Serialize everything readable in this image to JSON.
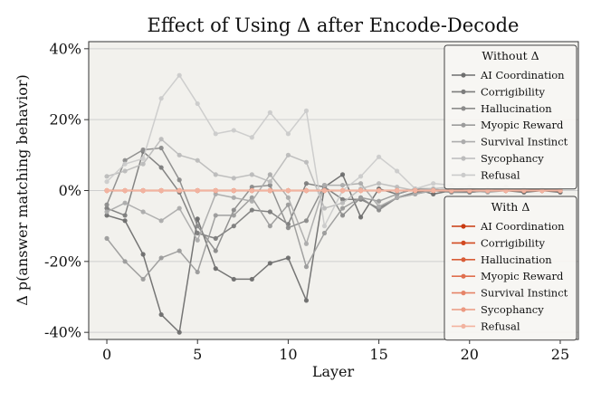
{
  "chart_data": {
    "type": "line",
    "title": "Effect of Using Δ after Encode-Decode",
    "xlabel": "Layer",
    "ylabel": "Δ p(answer matching behavior)",
    "xlim": [
      -1,
      26
    ],
    "ylim": [
      -0.42,
      0.42
    ],
    "xticks": [
      0,
      5,
      10,
      15,
      20,
      25
    ],
    "yticks": [
      {
        "value": 0.4,
        "label": "40%"
      },
      {
        "value": 0.2,
        "label": "20%"
      },
      {
        "value": 0.0,
        "label": "0%"
      },
      {
        "value": -0.2,
        "label": "-20%"
      },
      {
        "value": -0.4,
        "label": "-40%"
      }
    ],
    "x": [
      0,
      1,
      2,
      3,
      4,
      5,
      6,
      7,
      8,
      9,
      10,
      11,
      12,
      13,
      14,
      15,
      16,
      17,
      18,
      19,
      20,
      21,
      22,
      23,
      24,
      25
    ],
    "legends": [
      {
        "title": "Without Δ",
        "group": "without"
      },
      {
        "title": "With Δ",
        "group": "with"
      }
    ],
    "series_without": [
      {
        "name": "AI Coordination",
        "color": "#6f6f6f",
        "values": [
          -0.07,
          -0.085,
          -0.18,
          -0.35,
          -0.4,
          -0.08,
          -0.22,
          -0.25,
          -0.25,
          -0.205,
          -0.19,
          -0.31,
          0.01,
          0.045,
          -0.075,
          0.005,
          -0.01,
          0.005,
          -0.01,
          0.0,
          -0.005,
          0.0,
          0.0,
          -0.005,
          0.0,
          -0.005
        ]
      },
      {
        "name": "Corrigibility",
        "color": "#7d7d7d",
        "values": [
          -0.05,
          -0.07,
          0.11,
          0.065,
          -0.005,
          -0.12,
          -0.135,
          -0.1,
          -0.055,
          -0.06,
          -0.095,
          0.02,
          0.01,
          -0.025,
          -0.025,
          -0.05,
          -0.02,
          -0.005,
          0.0,
          0.0,
          0.005,
          0.0,
          0.0,
          0.0,
          0.005,
          0.0
        ]
      },
      {
        "name": "Hallucination",
        "color": "#8c8c8c",
        "values": [
          -0.04,
          0.085,
          0.115,
          0.12,
          0.03,
          -0.1,
          -0.17,
          -0.055,
          0.01,
          0.015,
          -0.105,
          -0.085,
          0.015,
          -0.07,
          -0.02,
          -0.055,
          -0.02,
          -0.01,
          0.0,
          -0.005,
          -0.005,
          0.0,
          0.0,
          0.0,
          0.0,
          0.0
        ]
      },
      {
        "name": "Myopic Reward",
        "color": "#9c9c9c",
        "values": [
          -0.135,
          -0.2,
          -0.25,
          -0.19,
          -0.17,
          -0.23,
          -0.07,
          -0.07,
          -0.02,
          -0.1,
          -0.04,
          -0.215,
          -0.12,
          -0.05,
          -0.02,
          -0.03,
          -0.01,
          0.005,
          0.005,
          -0.005,
          0.0,
          0.0,
          0.0,
          0.0,
          0.0,
          0.0
        ]
      },
      {
        "name": "Survival Instinct",
        "color": "#acacac",
        "values": [
          -0.06,
          -0.035,
          -0.06,
          -0.085,
          -0.05,
          -0.14,
          -0.01,
          -0.02,
          -0.03,
          0.045,
          -0.02,
          -0.15,
          0.015,
          0.015,
          0.02,
          -0.045,
          -0.02,
          -0.01,
          0.0,
          0.005,
          0.0,
          -0.005,
          0.0,
          0.0,
          0.0,
          0.0
        ]
      },
      {
        "name": "Sycophancy",
        "color": "#bcbcbc",
        "values": [
          0.04,
          0.055,
          0.075,
          0.145,
          0.1,
          0.085,
          0.045,
          0.035,
          0.045,
          0.025,
          0.1,
          0.08,
          -0.05,
          -0.035,
          0.005,
          0.02,
          0.01,
          0.0,
          0.005,
          0.01,
          0.01,
          0.0,
          0.005,
          0.005,
          0.005,
          0.005
        ]
      },
      {
        "name": "Refusal",
        "color": "#cbcbcb",
        "values": [
          0.025,
          0.075,
          0.09,
          0.26,
          0.325,
          0.245,
          0.16,
          0.17,
          0.15,
          0.22,
          0.16,
          0.225,
          -0.1,
          0.0,
          0.04,
          0.095,
          0.055,
          0.005,
          0.02,
          0.015,
          0.0,
          0.005,
          0.01,
          0.0,
          0.0,
          0.005
        ]
      }
    ],
    "series_with": [
      {
        "name": "AI Coordination",
        "color": "#c83a11",
        "values": [
          0,
          0,
          0,
          0,
          0,
          0,
          0,
          0,
          0,
          0,
          0,
          0,
          0,
          0,
          0,
          0,
          0,
          0,
          0,
          0,
          0,
          0,
          0,
          0,
          0,
          0
        ]
      },
      {
        "name": "Corrigibility",
        "color": "#d24a22",
        "values": [
          0,
          0,
          0,
          0,
          0,
          0,
          0,
          0,
          0,
          0,
          0,
          0,
          0,
          0,
          0,
          0,
          0,
          0,
          0,
          0,
          0,
          0,
          0,
          0,
          0,
          0
        ]
      },
      {
        "name": "Hallucination",
        "color": "#d95d38",
        "values": [
          0,
          0,
          0,
          0,
          0,
          0,
          0,
          0,
          0,
          0,
          0,
          0,
          0,
          0,
          0,
          0,
          0,
          0,
          0,
          0,
          0,
          0,
          0,
          0,
          0,
          0
        ]
      },
      {
        "name": "Myopic Reward",
        "color": "#e06f4f",
        "values": [
          0,
          0,
          0,
          0,
          0,
          0,
          0,
          0,
          0,
          0,
          0,
          0,
          0,
          0,
          0,
          0,
          0,
          0,
          0,
          0,
          0,
          0,
          0,
          0,
          0,
          0
        ]
      },
      {
        "name": "Survival Instinct",
        "color": "#e68468",
        "values": [
          0,
          0,
          0,
          0,
          0,
          0,
          0,
          0,
          0,
          0,
          0,
          0,
          0,
          0,
          0,
          0,
          0,
          0,
          0,
          0,
          0,
          0,
          0,
          0,
          0,
          0
        ]
      },
      {
        "name": "Sycophancy",
        "color": "#ec9a82",
        "values": [
          0,
          0,
          0,
          0,
          0,
          0,
          0,
          0,
          0,
          0,
          0,
          0,
          0,
          0,
          0,
          0,
          0,
          0,
          0,
          0,
          0,
          0,
          0,
          0,
          0,
          0
        ]
      },
      {
        "name": "Refusal",
        "color": "#f2b3a0",
        "values": [
          0,
          0,
          0,
          0,
          0,
          0,
          0,
          0,
          0,
          0,
          0,
          0,
          0,
          0,
          0,
          0,
          0,
          0,
          0,
          0,
          0,
          0,
          0,
          0,
          0,
          0
        ]
      }
    ],
    "colors": {
      "plot_bg": "#f2f1ed",
      "grid": "#cfcfcf",
      "legend_bg": "#f7f6f3",
      "legend_border": "#444444"
    }
  }
}
